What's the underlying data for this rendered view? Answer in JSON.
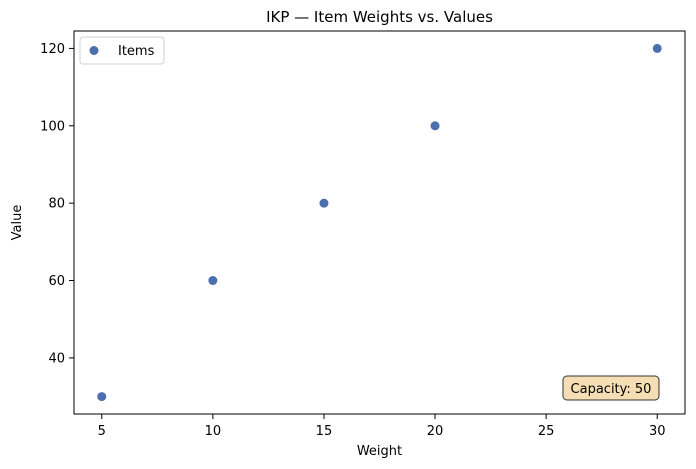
{
  "chart_data": {
    "type": "scatter",
    "title": "IKP — Item Weights vs. Values",
    "xlabel": "Weight",
    "ylabel": "Value",
    "xlim": [
      3.75,
      31.25
    ],
    "ylim": [
      25.5,
      124.5
    ],
    "xticks": [
      5,
      10,
      15,
      20,
      25,
      30
    ],
    "yticks": [
      40,
      60,
      80,
      100,
      120
    ],
    "grid": false,
    "legend_position": "top-left",
    "series": [
      {
        "name": "Items",
        "color": "#4c6faf",
        "x": [
          5,
          10,
          15,
          20,
          30
        ],
        "y": [
          30,
          60,
          80,
          100,
          120
        ]
      }
    ],
    "annotation": {
      "text": "Capacity: 50",
      "position": "bottom-right",
      "box_color": "#f5deb3"
    }
  }
}
